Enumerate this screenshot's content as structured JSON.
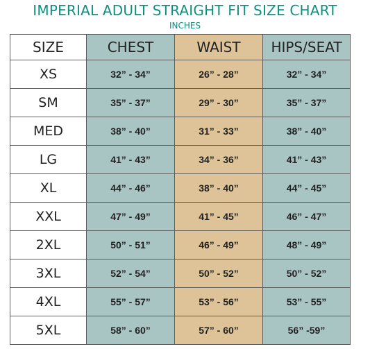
{
  "title": "IMPERIAL ADULT STRAIGHT FIT SIZE CHART",
  "subtitle": "INCHES",
  "colors": {
    "title": "#0e8f80",
    "chest_column": "#a9c5c3",
    "waist_column": "#ddc397",
    "hips_column": "#a9c5c3",
    "border": "#5c5c5c"
  },
  "headers": {
    "size": "SIZE",
    "chest": "CHEST",
    "waist": "WAIST",
    "hips": "HIPS/SEAT"
  },
  "rows": [
    {
      "size": "XS",
      "chest": "32” - 34”",
      "waist": "26” - 28”",
      "hips": "32” - 34”"
    },
    {
      "size": "SM",
      "chest": "35” - 37”",
      "waist": "29” - 30”",
      "hips": "35” - 37”"
    },
    {
      "size": "MED",
      "chest": "38” - 40”",
      "waist": "31” - 33”",
      "hips": "38” - 40”"
    },
    {
      "size": "LG",
      "chest": "41” - 43”",
      "waist": "34” - 36”",
      "hips": "41” - 43”"
    },
    {
      "size": "XL",
      "chest": "44” - 46”",
      "waist": "38” - 40”",
      "hips": "44” - 45”"
    },
    {
      "size": "XXL",
      "chest": "47” - 49”",
      "waist": "41” - 45”",
      "hips": "46” - 47”"
    },
    {
      "size": "2XL",
      "chest": "50” - 51”",
      "waist": "46” - 49”",
      "hips": "48” - 49”"
    },
    {
      "size": "3XL",
      "chest": "52” - 54”",
      "waist": "50” - 52”",
      "hips": "50” - 52”"
    },
    {
      "size": "4XL",
      "chest": "55” - 57”",
      "waist": "53” - 56”",
      "hips": "53” - 55”"
    },
    {
      "size": "5XL",
      "chest": "58” - 60”",
      "waist": "57” - 60”",
      "hips": "56” -59”"
    }
  ]
}
